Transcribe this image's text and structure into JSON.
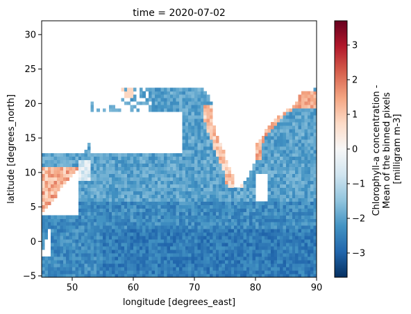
{
  "chart_data": {
    "type": "heatmap",
    "title": "time = 2020-07-02",
    "xlabel": "longitude [degrees_east]",
    "ylabel": "latitude [degrees_north]",
    "xlim": [
      45,
      90
    ],
    "ylim": [
      -5.2,
      32
    ],
    "x_ticks": [
      50,
      60,
      70,
      80,
      90
    ],
    "y_ticks": [
      -5,
      0,
      5,
      10,
      15,
      20,
      25,
      30
    ],
    "colorbar": {
      "label_lines": [
        "Chlorophyll-a concentration -",
        "Mean of the binned pixels",
        "[milligram m-3]"
      ],
      "range": [
        -3.7,
        3.7
      ],
      "ticks": [
        -3,
        -2,
        -1,
        0,
        1,
        2,
        3
      ],
      "colormap": "RdBu_r",
      "colors": [
        "#053061",
        "#2166ac",
        "#4393c3",
        "#92c5de",
        "#d1e5f0",
        "#f7f7f7",
        "#fddbc7",
        "#f4a582",
        "#d6604d",
        "#b2182b",
        "#67001f"
      ]
    },
    "missing_data_color": "#ffffff"
  }
}
